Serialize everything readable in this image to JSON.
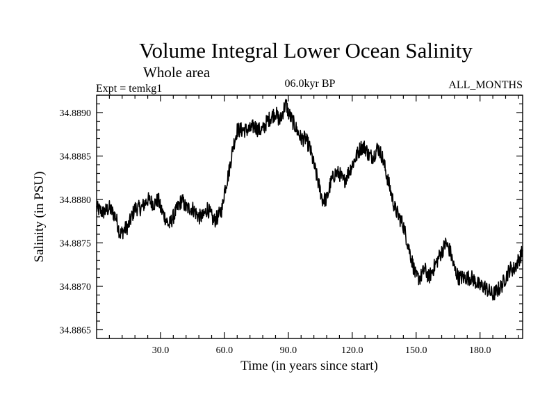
{
  "chart_data": {
    "type": "line",
    "title": "Volume Integral Lower Ocean Salinity",
    "subtitle": "Whole area",
    "experiment_label": "Expt = temkg1",
    "period_label": "06.0kyr BP",
    "months_label": "ALL_MONTHS",
    "xlabel": "Time (in years since start)",
    "ylabel": "Salinity (in PSU)",
    "xlim": [
      0,
      200
    ],
    "ylim": [
      34.8864,
      34.8892
    ],
    "xticks": [
      30,
      60,
      90,
      120,
      150,
      180
    ],
    "xtick_labels": [
      "30.0",
      "60.0",
      "90.0",
      "120.0",
      "150.0",
      "180.0"
    ],
    "yticks": [
      34.8865,
      34.887,
      34.8875,
      34.888,
      34.8885,
      34.889
    ],
    "ytick_labels": [
      "34.8865",
      "34.8870",
      "34.8875",
      "34.8880",
      "34.8885",
      "34.8890"
    ],
    "grid": false,
    "series": [
      {
        "name": "Salinity",
        "color": "#000000",
        "x": [
          0,
          3,
          6,
          9,
          11,
          13,
          15,
          18,
          21,
          24,
          27,
          29,
          30,
          32,
          34,
          36,
          38,
          40,
          42,
          45,
          48,
          50,
          52,
          54,
          55,
          57,
          59,
          60,
          62,
          64,
          66,
          68,
          70,
          72,
          74,
          76,
          78,
          80,
          82,
          84,
          86,
          88,
          89,
          90,
          92,
          94,
          96,
          98,
          100,
          102,
          104,
          106,
          108,
          110,
          112,
          114,
          116,
          118,
          120,
          122,
          124,
          126,
          128,
          130,
          132,
          134,
          136,
          138,
          140,
          142,
          144,
          146,
          148,
          150,
          152,
          154,
          156,
          158,
          160,
          162,
          164,
          166,
          168,
          170,
          172,
          174,
          176,
          178,
          180,
          182,
          184,
          186,
          188,
          190,
          192,
          194,
          196,
          198,
          200
        ],
        "values": [
          34.8879,
          34.88785,
          34.8879,
          34.8878,
          34.8876,
          34.88765,
          34.8877,
          34.8879,
          34.8879,
          34.888,
          34.88795,
          34.888,
          34.8879,
          34.8878,
          34.8877,
          34.8878,
          34.8879,
          34.888,
          34.8879,
          34.8879,
          34.8878,
          34.8878,
          34.8879,
          34.8878,
          34.88775,
          34.8878,
          34.8879,
          34.8881,
          34.8883,
          34.8886,
          34.8888,
          34.8888,
          34.8888,
          34.8888,
          34.88885,
          34.8888,
          34.8888,
          34.8889,
          34.88895,
          34.889,
          34.8889,
          34.88905,
          34.8891,
          34.889,
          34.8889,
          34.8888,
          34.8887,
          34.8887,
          34.8886,
          34.8884,
          34.8882,
          34.888,
          34.888,
          34.8882,
          34.8883,
          34.8883,
          34.8882,
          34.8883,
          34.8884,
          34.8885,
          34.8886,
          34.8886,
          34.8885,
          34.8885,
          34.8886,
          34.8885,
          34.8883,
          34.8881,
          34.8879,
          34.8878,
          34.8877,
          34.8875,
          34.8873,
          34.8871,
          34.8871,
          34.8872,
          34.8871,
          34.8872,
          34.8873,
          34.8874,
          34.8875,
          34.8874,
          34.8872,
          34.8871,
          34.8871,
          34.8871,
          34.8871,
          34.88705,
          34.887,
          34.887,
          34.88695,
          34.8869,
          34.88695,
          34.887,
          34.8871,
          34.8872,
          34.8872,
          34.8873,
          34.8874
        ]
      }
    ]
  }
}
